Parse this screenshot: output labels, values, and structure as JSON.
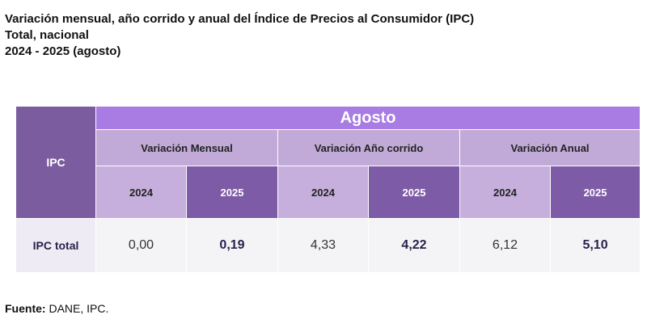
{
  "title": {
    "line1": "Variación mensual, año corrido y anual del Índice de Precios al Consumidor (IPC)",
    "line2": "Total, nacional",
    "line3": "2024 - 2025 (agosto)"
  },
  "table": {
    "corner_label": "IPC",
    "month_header": "Agosto",
    "groups": [
      {
        "label": "Variación Mensual",
        "years": [
          "2024",
          "2025"
        ]
      },
      {
        "label": "Variación Año corrido",
        "years": [
          "2024",
          "2025"
        ]
      },
      {
        "label": "Variación Anual",
        "years": [
          "2024",
          "2025"
        ]
      }
    ],
    "row": {
      "label": "IPC total",
      "values": [
        "0,00",
        "0,19",
        "4,33",
        "4,22",
        "6,12",
        "5,10"
      ]
    }
  },
  "source": {
    "label": "Fuente:",
    "text": " DANE, IPC."
  },
  "colors": {
    "month_header": "#a87ce3",
    "dark_purple": "#7e5ba6",
    "light_purple": "#c1aad8"
  }
}
